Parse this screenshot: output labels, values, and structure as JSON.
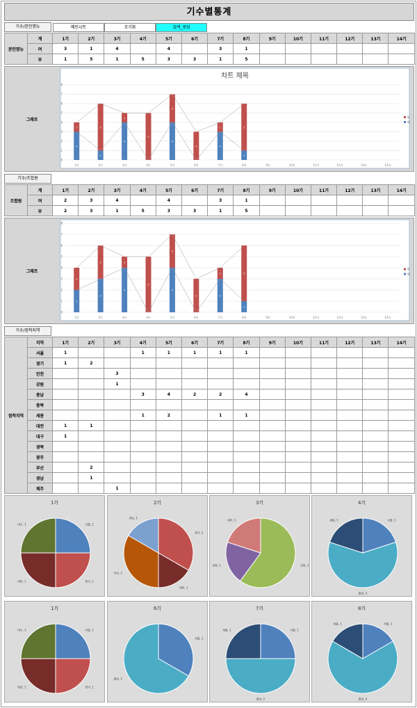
{
  "title": "기수별통계",
  "top": {
    "section_label": "기수/본인명뉴",
    "buttons": [
      {
        "label": "메인시트",
        "active": false
      },
      {
        "label": "조기화",
        "active": false
      },
      {
        "label": "검색_로딩",
        "active": true
      }
    ]
  },
  "periods": [
    "1기",
    "2기",
    "3기",
    "4기",
    "5기",
    "6기",
    "7기",
    "8기",
    "9기",
    "10기",
    "11기",
    "12기",
    "13기",
    "14기"
  ],
  "table1": {
    "group_label": "본인명뉴",
    "header_label": "계",
    "rows": [
      {
        "label": "여",
        "values": [
          "3",
          "1",
          "4",
          "",
          "4",
          "",
          "3",
          "1",
          "",
          "",
          "",
          "",
          "",
          ""
        ]
      },
      {
        "label": "부",
        "values": [
          "1",
          "5",
          "1",
          "5",
          "3",
          "3",
          "1",
          "5",
          "",
          "",
          "",
          "",
          "",
          ""
        ]
      }
    ]
  },
  "chart1": {
    "side_label": "그래프",
    "title": "차트 제목"
  },
  "section2_label": "기수/조합원",
  "table2": {
    "group_label": "조합원",
    "header_label": "계",
    "rows": [
      {
        "label": "여",
        "values": [
          "2",
          "3",
          "4",
          "",
          "4",
          "",
          "3",
          "1",
          "",
          "",
          "",
          "",
          "",
          ""
        ]
      },
      {
        "label": "부",
        "values": [
          "2",
          "3",
          "1",
          "5",
          "3",
          "3",
          "1",
          "5",
          "",
          "",
          "",
          "",
          "",
          ""
        ]
      }
    ]
  },
  "chart2": {
    "side_label": "그래프",
    "title": ""
  },
  "section3_label": "기수/정착지역",
  "table3": {
    "group_label": "정착지역",
    "header_label": "지역",
    "rows": [
      {
        "label": "서울",
        "values": [
          "1",
          "",
          "",
          "1",
          "1",
          "1",
          "1",
          "1",
          "",
          "",
          "",
          "",
          "",
          ""
        ]
      },
      {
        "label": "경기",
        "values": [
          "1",
          "2",
          "",
          "",
          "",
          "",
          "",
          "",
          "",
          "",
          "",
          "",
          "",
          ""
        ]
      },
      {
        "label": "인천",
        "values": [
          "",
          "",
          "3",
          "",
          "",
          "",
          "",
          "",
          "",
          "",
          "",
          "",
          "",
          ""
        ]
      },
      {
        "label": "강원",
        "values": [
          "",
          "",
          "1",
          "",
          "",
          "",
          "",
          "",
          "",
          "",
          "",
          "",
          "",
          ""
        ]
      },
      {
        "label": "충남",
        "values": [
          "",
          "",
          "",
          "3",
          "4",
          "2",
          "2",
          "4",
          "",
          "",
          "",
          "",
          "",
          ""
        ]
      },
      {
        "label": "충북",
        "values": [
          "",
          "",
          "",
          "",
          "",
          "",
          "",
          "",
          "",
          "",
          "",
          "",
          "",
          ""
        ]
      },
      {
        "label": "세종",
        "values": [
          "",
          "",
          "",
          "1",
          "2",
          "",
          "1",
          "1",
          "",
          "",
          "",
          "",
          "",
          ""
        ]
      },
      {
        "label": "대전",
        "values": [
          "1",
          "1",
          "",
          "",
          "",
          "",
          "",
          "",
          "",
          "",
          "",
          "",
          "",
          ""
        ]
      },
      {
        "label": "대구",
        "values": [
          "1",
          "",
          "",
          "",
          "",
          "",
          "",
          "",
          "",
          "",
          "",
          "",
          "",
          ""
        ]
      },
      {
        "label": "경북",
        "values": [
          "",
          "",
          "",
          "",
          "",
          "",
          "",
          "",
          "",
          "",
          "",
          "",
          "",
          ""
        ]
      },
      {
        "label": "광주",
        "values": [
          "",
          "",
          "",
          "",
          "",
          "",
          "",
          "",
          "",
          "",
          "",
          "",
          "",
          ""
        ]
      },
      {
        "label": "부산",
        "values": [
          "",
          "2",
          "",
          "",
          "",
          "",
          "",
          "",
          "",
          "",
          "",
          "",
          "",
          ""
        ]
      },
      {
        "label": "경남",
        "values": [
          "",
          "1",
          "",
          "",
          "",
          "",
          "",
          "",
          "",
          "",
          "",
          "",
          "",
          ""
        ]
      },
      {
        "label": "제주",
        "values": [
          "",
          "",
          "1",
          "",
          "",
          "",
          "",
          "",
          "",
          "",
          "",
          "",
          "",
          ""
        ]
      }
    ]
  },
  "chart_data": [
    {
      "type": "bar",
      "stacked": true,
      "title": "차트 제목",
      "categories": [
        "1기",
        "2기",
        "3기",
        "4기",
        "5기",
        "6기",
        "7기",
        "8기",
        "9기",
        "10기",
        "11기",
        "12기",
        "13기",
        "14기"
      ],
      "series": [
        {
          "name": "여",
          "color": "#4f81bd",
          "values": [
            3,
            1,
            4,
            0,
            4,
            0,
            3,
            1,
            0,
            0,
            0,
            0,
            0,
            0
          ]
        },
        {
          "name": "부",
          "color": "#c0504d",
          "values": [
            1,
            5,
            1,
            5,
            3,
            3,
            1,
            5,
            0,
            0,
            0,
            0,
            0,
            0
          ]
        }
      ],
      "ylim": [
        0,
        8
      ],
      "legend": "right",
      "grid": true
    },
    {
      "type": "bar",
      "stacked": true,
      "title": "",
      "categories": [
        "1기",
        "2기",
        "3기",
        "4기",
        "5기",
        "6기",
        "7기",
        "8기",
        "9기",
        "10기",
        "11기",
        "12기",
        "13기",
        "14기"
      ],
      "series": [
        {
          "name": "여",
          "color": "#4f81bd",
          "values": [
            2,
            3,
            4,
            0,
            4,
            0,
            3,
            1,
            0,
            0,
            0,
            0,
            0,
            0
          ]
        },
        {
          "name": "부",
          "color": "#c0504d",
          "values": [
            2,
            3,
            1,
            5,
            3,
            3,
            1,
            5,
            0,
            0,
            0,
            0,
            0,
            0
          ]
        }
      ],
      "ylim": [
        0,
        8
      ],
      "legend": "right",
      "grid": true
    },
    {
      "type": "pie",
      "title": "1기",
      "slices": [
        {
          "label": "서울, 1",
          "value": 1,
          "color": "#4f81bd"
        },
        {
          "label": "경기, 1",
          "value": 1,
          "color": "#c0504d"
        },
        {
          "label": "대전, 1",
          "value": 1,
          "color": "#772c2a"
        },
        {
          "label": "대구, 1",
          "value": 1,
          "color": "#5f7530"
        }
      ]
    },
    {
      "type": "pie",
      "title": "2기",
      "slices": [
        {
          "label": "경기, 2",
          "value": 2,
          "color": "#c0504d"
        },
        {
          "label": "대전, 1",
          "value": 1,
          "color": "#772c2a"
        },
        {
          "label": "부산, 2",
          "value": 2,
          "color": "#b65708"
        },
        {
          "label": "경남, 1",
          "value": 1,
          "color": "#7ca0d0"
        }
      ]
    },
    {
      "type": "pie",
      "title": "3기",
      "slices": [
        {
          "label": "인천, 3",
          "value": 3,
          "color": "#9bbb59"
        },
        {
          "label": "강원, 1",
          "value": 1,
          "color": "#8064a2"
        },
        {
          "label": "제주, 1",
          "value": 1,
          "color": "#d07a78"
        }
      ]
    },
    {
      "type": "pie",
      "title": "4기",
      "slices": [
        {
          "label": "서울, 1",
          "value": 1,
          "color": "#4f81bd"
        },
        {
          "label": "충남, 3",
          "value": 3,
          "color": "#4bacc6"
        },
        {
          "label": "세종, 1",
          "value": 1,
          "color": "#2c4d75"
        }
      ]
    },
    {
      "type": "pie",
      "title": "1기",
      "slices": [
        {
          "label": "서울, 1",
          "value": 1,
          "color": "#4f81bd"
        },
        {
          "label": "경기, 1",
          "value": 1,
          "color": "#c0504d"
        },
        {
          "label": "대전, 1",
          "value": 1,
          "color": "#772c2a"
        },
        {
          "label": "대구, 1",
          "value": 1,
          "color": "#5f7530"
        }
      ]
    },
    {
      "type": "pie",
      "title": "6기",
      "slices": [
        {
          "label": "서울, 1",
          "value": 1,
          "color": "#4f81bd"
        },
        {
          "label": "충남, 2",
          "value": 2,
          "color": "#4bacc6"
        }
      ]
    },
    {
      "type": "pie",
      "title": "7기",
      "slices": [
        {
          "label": "서울, 1",
          "value": 1,
          "color": "#4f81bd"
        },
        {
          "label": "충남, 2",
          "value": 2,
          "color": "#4bacc6"
        },
        {
          "label": "세종, 1",
          "value": 1,
          "color": "#2c4d75"
        }
      ]
    },
    {
      "type": "pie",
      "title": "8기",
      "slices": [
        {
          "label": "서울, 1",
          "value": 1,
          "color": "#4f81bd"
        },
        {
          "label": "충남, 4",
          "value": 4,
          "color": "#4bacc6"
        },
        {
          "label": "세종, 1",
          "value": 1,
          "color": "#2c4d75"
        }
      ]
    }
  ]
}
